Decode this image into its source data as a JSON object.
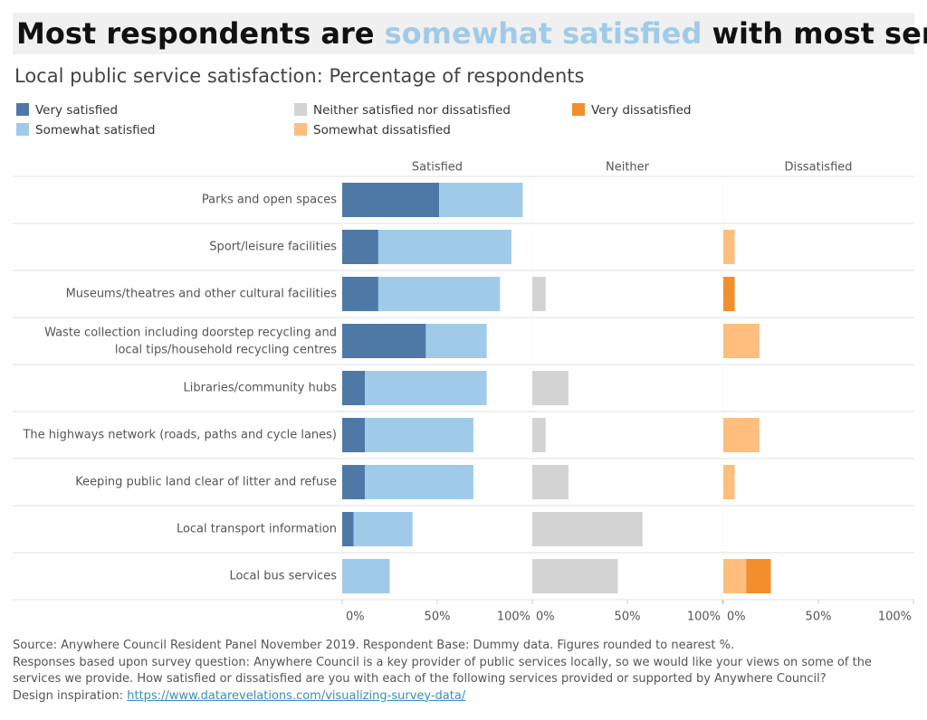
{
  "chart_data": {
    "type": "bar",
    "title": [
      "Most respondents are ",
      "somewhat satisfied",
      " with most services"
    ],
    "title_highlight_color": "#a0cbe8",
    "subtitle": "Local public service satisfaction: Percentage of respondents",
    "categories": [
      "Parks and open spaces",
      "Sport/leisure facilities",
      "Museums/theatres and other cultural facilities",
      "Waste collection including doorstep recycling and local tips/household recycling centres",
      "Libraries/community hubs",
      "The highways network (roads, paths and cycle lanes)",
      "Keeping public land clear of litter and refuse",
      "Local transport information",
      "Local bus services"
    ],
    "panels": [
      {
        "name": "Satisfied",
        "series": [
          {
            "name": "Very satisfied",
            "color": "#4e79a7",
            "values": [
              51,
              19,
              19,
              44,
              12,
              12,
              12,
              6,
              0
            ]
          },
          {
            "name": "Somewhat satisfied",
            "color": "#a0cbe8",
            "values": [
              44,
              70,
              64,
              32,
              64,
              57,
              57,
              31,
              25
            ]
          }
        ]
      },
      {
        "name": "Neither",
        "series": [
          {
            "name": "Neither satisfied nor dissatisfied",
            "color": "#d3d3d3",
            "values": [
              0,
              0,
              7,
              0,
              19,
              7,
              19,
              58,
              45
            ]
          }
        ]
      },
      {
        "name": "Dissatisfied",
        "series": [
          {
            "name": "Somewhat dissatisfied",
            "color": "#ffbe7d",
            "values": [
              0,
              6,
              0,
              19,
              0,
              19,
              6,
              0,
              12
            ]
          },
          {
            "name": "Very dissatisfied",
            "color": "#f28e2b",
            "values": [
              0,
              0,
              6,
              0,
              0,
              0,
              0,
              0,
              13
            ]
          }
        ]
      }
    ],
    "xlim": [
      0,
      100
    ],
    "xticks": [
      {
        "value": 0,
        "label": "0%"
      },
      {
        "value": 50,
        "label": "50%"
      },
      {
        "value": 100,
        "label": "100%"
      }
    ]
  },
  "footer": {
    "source": "Source: Anywhere Council Resident Panel November 2019.  Respondent Base: Dummy data. Figures rounded to nearest %.",
    "question": "Responses based upon survey question:  Anywhere Council is a key provider of public services locally, so we would like your views on some of the services we provide. How satisfied or dissatisfied are you with each of the following services provided or supported by Anywhere Council?",
    "inspiration": "Design inspiration: ",
    "link": "https://www.datarevelations.com/visualizing-survey-data/"
  }
}
